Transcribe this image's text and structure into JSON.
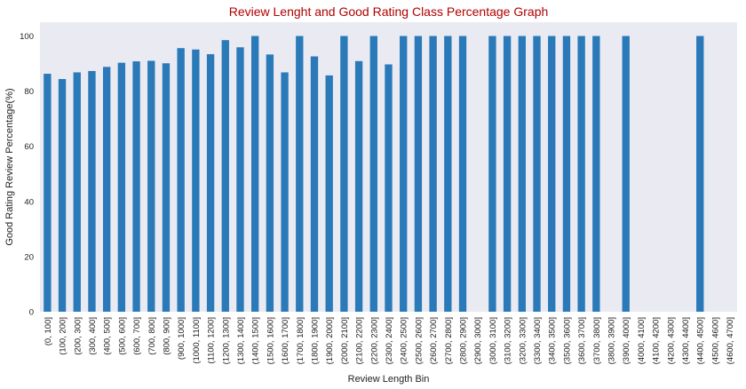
{
  "chart_data": {
    "type": "bar",
    "title": "Review Lenght and Good Rating Class Percentage Graph",
    "xlabel": "Review Length Bin",
    "ylabel": "Good Rating Review Percentage(%)",
    "ylim": [
      0,
      105
    ],
    "yticks": [
      0,
      20,
      40,
      60,
      80,
      100
    ],
    "grid": false,
    "categories": [
      "(0, 100]",
      "(100, 200]",
      "(200, 300]",
      "(300, 400]",
      "(400, 500]",
      "(500, 600]",
      "(600, 700]",
      "(700, 800]",
      "(800, 900]",
      "(900, 1000]",
      "(1000, 1100]",
      "(1100, 1200]",
      "(1200, 1300]",
      "(1300, 1400]",
      "(1400, 1500]",
      "(1500, 1600]",
      "(1600, 1700]",
      "(1700, 1800]",
      "(1800, 1900]",
      "(1900, 2000]",
      "(2000, 2100]",
      "(2100, 2200]",
      "(2200, 2300]",
      "(2300, 2400]",
      "(2400, 2500]",
      "(2500, 2600]",
      "(2600, 2700]",
      "(2700, 2800]",
      "(2800, 2900]",
      "(2900, 3000]",
      "(3000, 3100]",
      "(3100, 3200]",
      "(3200, 3300]",
      "(3300, 3400]",
      "(3400, 3500]",
      "(3500, 3600]",
      "(3600, 3700]",
      "(3700, 3800]",
      "(3800, 3900]",
      "(3900, 4000]",
      "(4000, 4100]",
      "(4100, 4200]",
      "(4200, 4300]",
      "(4300, 4400]",
      "(4400, 4500]",
      "(4500, 4600]",
      "(4600, 4700]"
    ],
    "values": [
      86.3,
      84.4,
      86.8,
      87.3,
      88.8,
      90.3,
      90.8,
      91.0,
      90.1,
      95.6,
      95.1,
      93.4,
      98.5,
      95.9,
      100,
      93.3,
      86.8,
      100,
      92.6,
      85.7,
      100,
      90.9,
      100,
      89.7,
      100,
      100,
      100,
      100,
      100,
      0,
      100,
      100,
      100,
      100,
      100,
      100,
      100,
      100,
      0,
      100,
      0,
      0,
      0,
      0,
      100,
      0,
      0
    ],
    "colors": {
      "bar": "#2a7ab9",
      "plot_background": "#eaeaf2",
      "title": "#b00000"
    }
  }
}
